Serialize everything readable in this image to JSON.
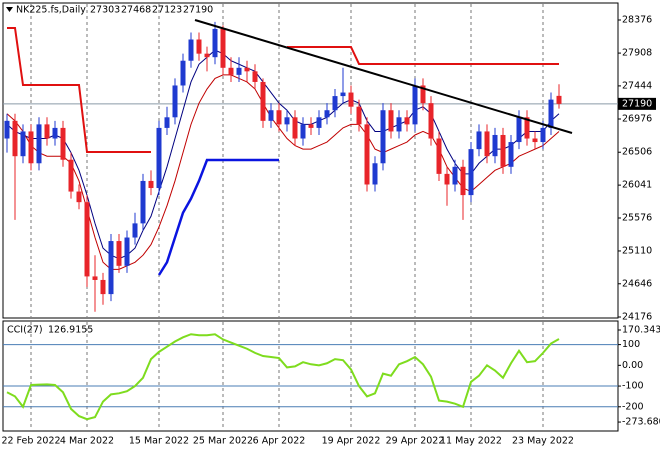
{
  "chart_data": {
    "type": "candlestick",
    "symbol": "NK225.fs,Daily",
    "up_color": "#1f3ad0",
    "down_color": "#e8242a",
    "categories": [
      null,
      null,
      null,
      "22 Feb 2022",
      null,
      null,
      null,
      null,
      null,
      null,
      "4 Mar 2022",
      null,
      null,
      null,
      null,
      null,
      null,
      null,
      null,
      "15 Mar 2022",
      null,
      null,
      null,
      null,
      null,
      null,
      null,
      "25 Mar 2022",
      null,
      null,
      null,
      null,
      null,
      null,
      "6 Apr 2022",
      null,
      null,
      null,
      null,
      null,
      null,
      null,
      null,
      "19 Apr 2022",
      null,
      null,
      null,
      null,
      null,
      null,
      null,
      "29 Apr 2022",
      null,
      null,
      null,
      null,
      null,
      null,
      "11 May 2022",
      null,
      null,
      null,
      null,
      null,
      null,
      null,
      null,
      "23 May 2022",
      null,
      null
    ],
    "open": [
      26700,
      26950,
      26450,
      26800,
      26350,
      26900,
      26700,
      26850,
      26400,
      25950,
      25800,
      24750,
      24700,
      24500,
      25250,
      24900,
      25300,
      25500,
      26100,
      26000,
      26850,
      27000,
      27450,
      27800,
      28100,
      27900,
      27850,
      28250,
      27700,
      27600,
      27700,
      27650,
      27500,
      26950,
      27100,
      26900,
      27000,
      26700,
      26900,
      26850,
      27000,
      27100,
      27300,
      27350,
      27150,
      26900,
      26050,
      26350,
      27100,
      26800,
      27000,
      26900,
      27450,
      27200,
      26700,
      26200,
      26050,
      26300,
      25900,
      26550,
      26800,
      26450,
      26750,
      26300,
      26650,
      27000,
      26700,
      26650,
      26850,
      27303
    ],
    "high": [
      27050,
      27050,
      26900,
      26900,
      27000,
      27000,
      26950,
      26950,
      26500,
      26050,
      25900,
      25050,
      24800,
      25350,
      25350,
      25400,
      25650,
      26200,
      26250,
      26950,
      27150,
      27550,
      27900,
      28200,
      28200,
      28000,
      28350,
      28300,
      27850,
      27850,
      27800,
      27750,
      27550,
      27200,
      27200,
      27100,
      27100,
      27000,
      27000,
      27100,
      27200,
      27400,
      27700,
      27450,
      27250,
      27000,
      26450,
      27200,
      27200,
      27100,
      27100,
      27550,
      27550,
      27300,
      26800,
      26300,
      26400,
      26400,
      26650,
      26900,
      26900,
      26850,
      26850,
      26750,
      27100,
      27100,
      26800,
      26950,
      27350,
      27468
    ],
    "low": [
      26500,
      25550,
      26350,
      26250,
      26250,
      26600,
      26600,
      26300,
      25850,
      25700,
      24600,
      24250,
      24350,
      24400,
      24800,
      24800,
      25200,
      25400,
      25900,
      25900,
      26750,
      26900,
      27350,
      27700,
      27800,
      27650,
      27750,
      27600,
      27500,
      27500,
      27500,
      27400,
      26850,
      26850,
      26800,
      26800,
      26600,
      26600,
      26750,
      26750,
      26900,
      27000,
      27200,
      27050,
      26800,
      25950,
      25950,
      26250,
      26700,
      26700,
      26800,
      26800,
      27100,
      26600,
      26100,
      25750,
      25950,
      25550,
      25800,
      26450,
      26350,
      26350,
      26200,
      26200,
      26550,
      26600,
      26550,
      26550,
      26750,
      27123
    ],
    "close": [
      26950,
      26450,
      26800,
      26350,
      26900,
      26700,
      26850,
      26400,
      25950,
      25800,
      24750,
      24700,
      24500,
      25250,
      24900,
      25300,
      25500,
      26100,
      26000,
      26850,
      27000,
      27450,
      27800,
      28100,
      27900,
      27850,
      28250,
      27700,
      27600,
      27700,
      27650,
      27500,
      26950,
      27100,
      26900,
      27000,
      26700,
      26900,
      26850,
      27000,
      27100,
      27300,
      27350,
      27150,
      26900,
      26050,
      26350,
      27100,
      26800,
      27000,
      26900,
      27450,
      27200,
      26700,
      26200,
      26050,
      26300,
      25900,
      26550,
      26800,
      26450,
      26750,
      26300,
      26650,
      27000,
      26700,
      26650,
      26850,
      27250,
      27190
    ],
    "overlays": [
      {
        "color": "#000080",
        "width": 1,
        "values": [
          26900,
          26800,
          26750,
          26700,
          26700,
          26700,
          26750,
          26700,
          26500,
          26250,
          25900,
          25500,
          25150,
          25050,
          25000,
          25050,
          25150,
          25400,
          25600,
          25950,
          26300,
          26700,
          27100,
          27500,
          27750,
          27850,
          27950,
          27900,
          27800,
          27750,
          27700,
          27650,
          27500,
          27350,
          27200,
          27100,
          26950,
          26900,
          26900,
          26950,
          27000,
          27100,
          27200,
          27250,
          27200,
          26950,
          26800,
          26800,
          26850,
          26900,
          26950,
          27100,
          27150,
          27050,
          26800,
          26550,
          26350,
          26200,
          26200,
          26350,
          26450,
          26550,
          26550,
          26600,
          26700,
          26800,
          26800,
          26800,
          26950,
          27050
        ]
      },
      {
        "color": "#c00000",
        "width": 1,
        "values": [
          27050,
          26950,
          26800,
          26600,
          26500,
          26450,
          26450,
          26450,
          26350,
          26100,
          25700,
          25300,
          24950,
          24850,
          24850,
          24900,
          24950,
          25050,
          25200,
          25450,
          25750,
          26100,
          26500,
          26900,
          27200,
          27400,
          27550,
          27600,
          27600,
          27550,
          27500,
          27400,
          27200,
          27000,
          26850,
          26700,
          26600,
          26550,
          26550,
          26600,
          26650,
          26750,
          26850,
          26900,
          26900,
          26750,
          26550,
          26500,
          26550,
          26600,
          26650,
          26750,
          26800,
          26750,
          26550,
          26300,
          26150,
          26000,
          25950,
          26050,
          26150,
          26250,
          26300,
          26350,
          26450,
          26500,
          26550,
          26600,
          26700,
          26800
        ]
      },
      {
        "color": "#e01010",
        "width": 2,
        "values": [
          28263,
          28263,
          27457,
          27457,
          27457,
          27457,
          27457,
          27457,
          27457,
          27457,
          26510,
          26510,
          26510,
          26510,
          26510,
          26510,
          26510,
          26510,
          26510,
          null,
          null,
          null,
          null,
          null,
          null,
          null,
          null,
          null,
          null,
          null,
          null,
          null,
          null,
          null,
          null,
          27994,
          27994,
          27994,
          27994,
          27994,
          27994,
          27994,
          27994,
          27994,
          27754,
          27754,
          27754,
          27754,
          27754,
          27754,
          27754,
          27754,
          27754,
          27754,
          27754,
          27754,
          27754,
          27754,
          27754,
          27754,
          27754,
          27754,
          27754,
          27754,
          27754,
          27754,
          27754,
          27754,
          27754,
          27754
        ]
      },
      {
        "color": "#0a14e0",
        "width": 2.5,
        "values": [
          null,
          null,
          null,
          null,
          null,
          null,
          null,
          null,
          null,
          null,
          null,
          null,
          null,
          null,
          null,
          null,
          null,
          null,
          null,
          24770,
          24950,
          25300,
          25650,
          25850,
          26100,
          26396,
          26396,
          26396,
          26396,
          26396,
          26396,
          26396,
          26396,
          26396,
          26396,
          null,
          null,
          null,
          null,
          null,
          null,
          null,
          null,
          null,
          null,
          null,
          null,
          null,
          null,
          null,
          null,
          null,
          null,
          null,
          null,
          null,
          null,
          null,
          null,
          null,
          null,
          null,
          null,
          null,
          null,
          null,
          null,
          null,
          null,
          null
        ]
      }
    ],
    "trendline": {
      "color": "#000000",
      "values": [
        28376,
        26778
      ]
    },
    "ylim": [
      24162,
      28588
    ],
    "yticks": [
      28376,
      27908,
      27444,
      26976,
      26506,
      26041,
      25576,
      25110,
      24646,
      24176
    ],
    "cci": {
      "label": "CCI(27)",
      "color": "#7edc1e",
      "values": [
        -130,
        -150,
        -200,
        -95,
        -93,
        -92,
        -95,
        -130,
        -210,
        -245,
        -260,
        -250,
        -175,
        -140,
        -135,
        -125,
        -100,
        -60,
        30,
        65,
        90,
        115,
        135,
        150,
        145,
        145,
        150,
        125,
        110,
        95,
        80,
        60,
        45,
        40,
        35,
        -10,
        -5,
        15,
        5,
        0,
        10,
        30,
        25,
        -20,
        -100,
        -150,
        -135,
        -40,
        -50,
        5,
        20,
        40,
        5,
        -55,
        -170,
        -175,
        -185,
        -200,
        -80,
        -50,
        0,
        -25,
        -60,
        10,
        70,
        15,
        20,
        60,
        105,
        126.9155
      ],
      "levels": [
        100,
        -100,
        -200
      ],
      "ylim": [
        -312,
        209
      ],
      "yticks": [
        170.3435,
        100,
        {
          "value": 0,
          "label": "0.00"
        },
        -100,
        -200,
        -273.6809
      ]
    }
  }
}
